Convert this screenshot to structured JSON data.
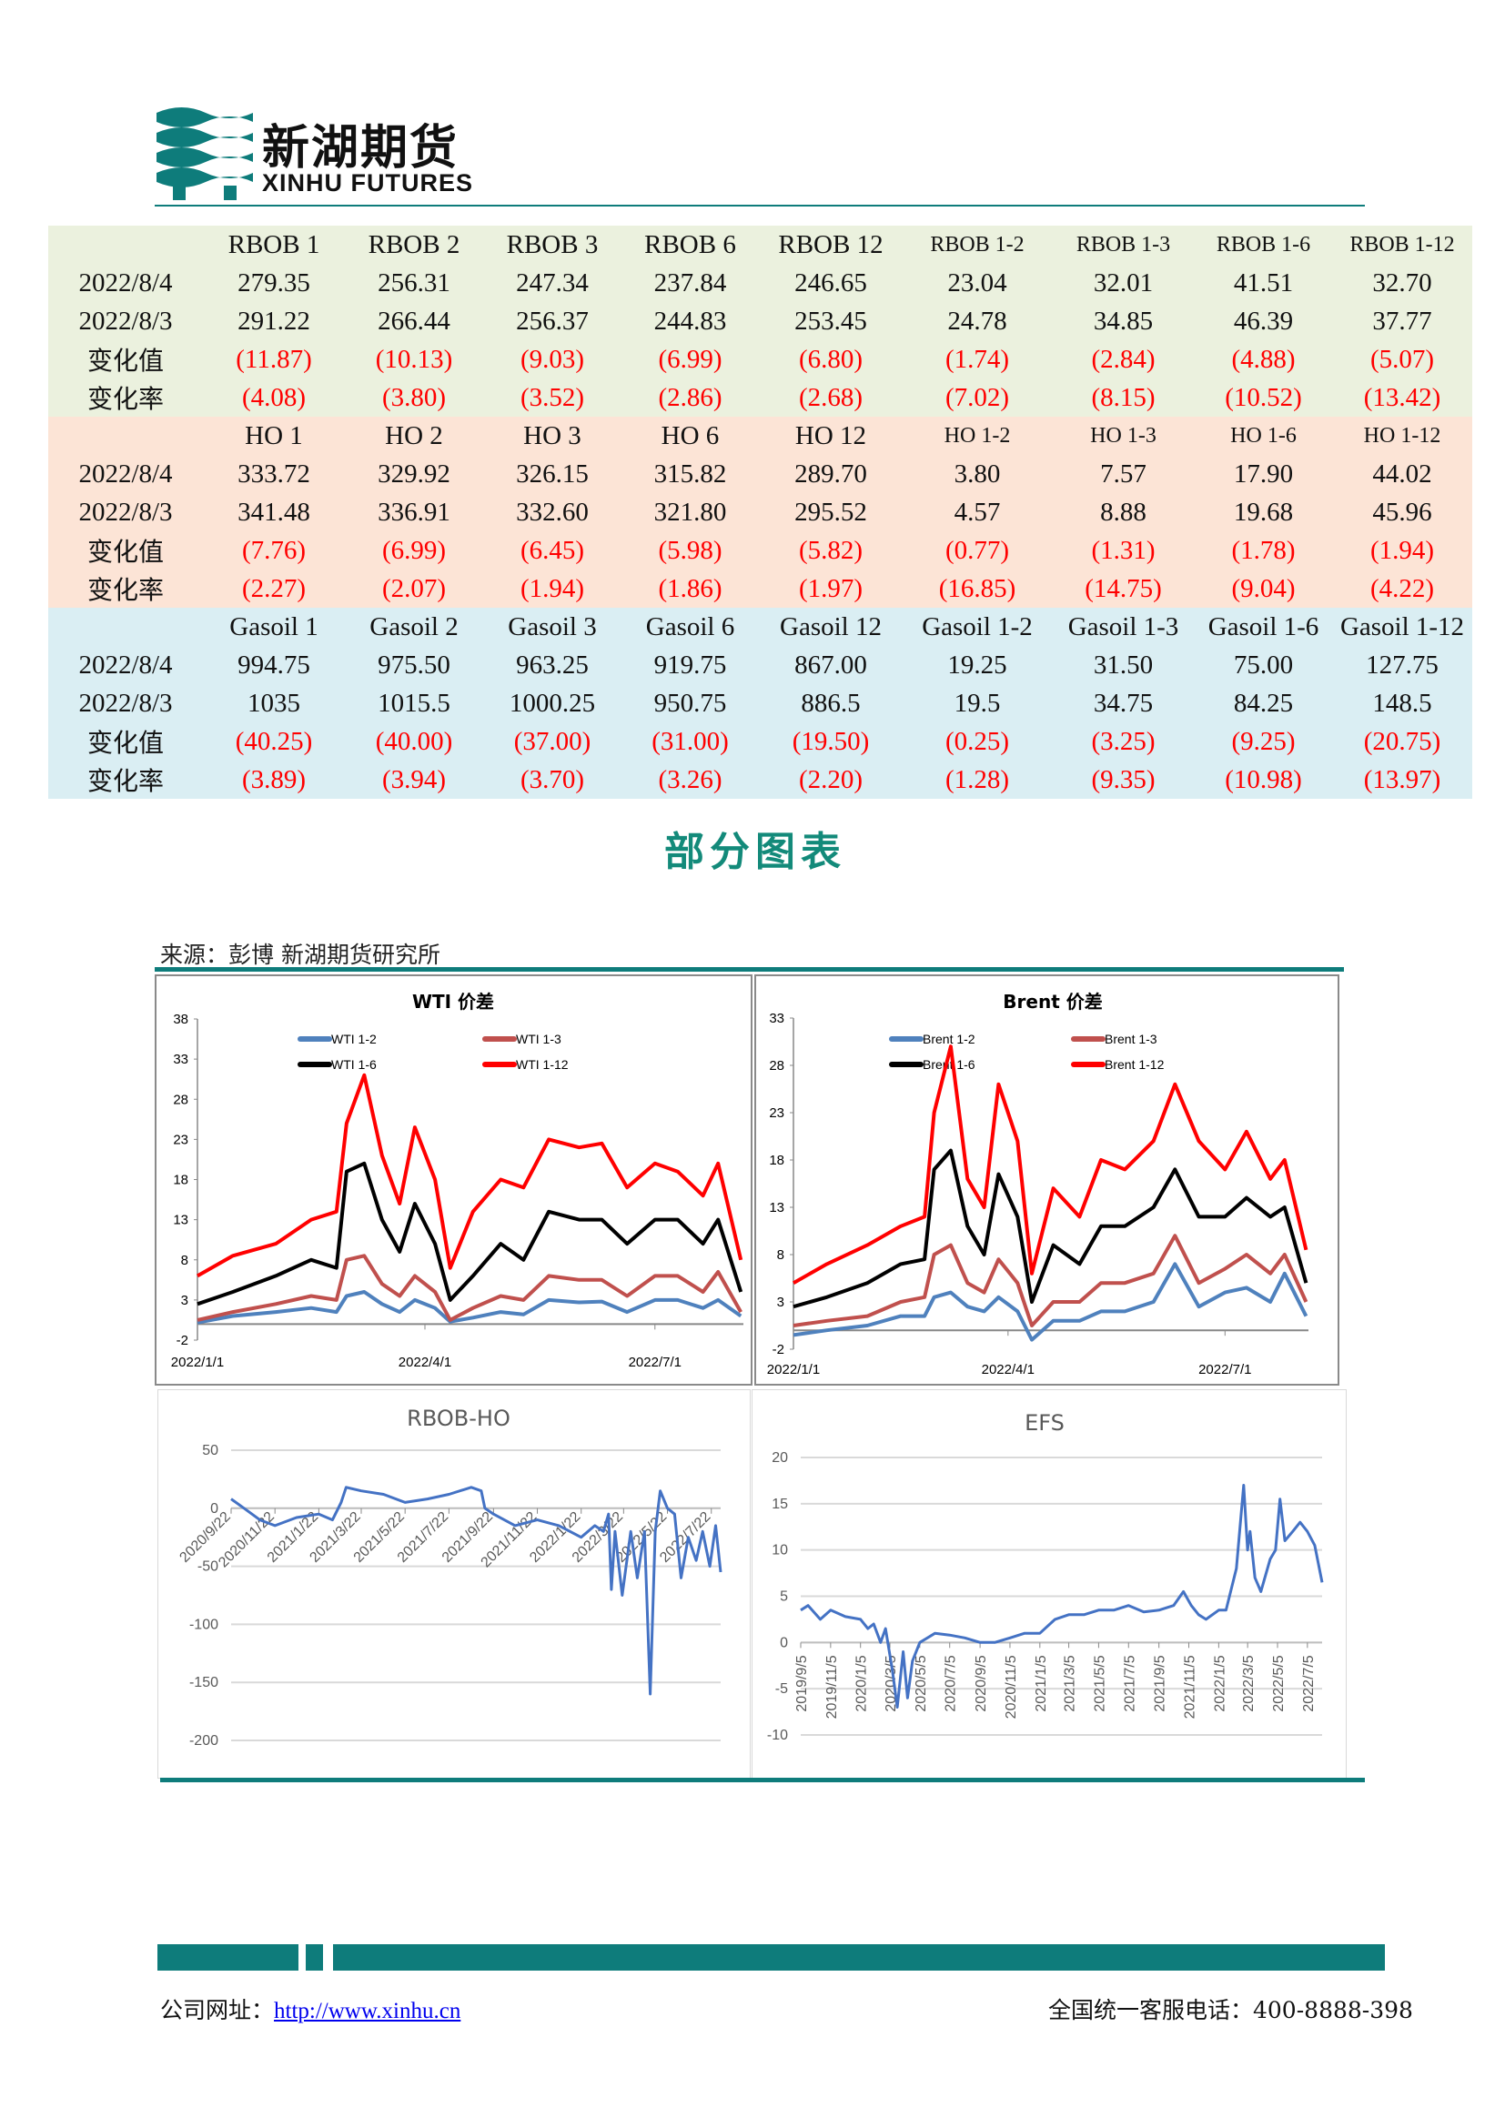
{
  "header": {
    "logo_cn": "新湖期货",
    "logo_en": "XINHU FUTURES",
    "brand_color": "#0e7c7b"
  },
  "table": {
    "sections": [
      {
        "headers": [
          "RBOB 1",
          "RBOB 2",
          "RBOB 3",
          "RBOB 6",
          "RBOB 12",
          "RBOB 1-2",
          "RBOB 1-3",
          "RBOB 1-6",
          "RBOB 1-12"
        ],
        "rows": [
          {
            "label": "2022/8/4",
            "values": [
              "279.35",
              "256.31",
              "247.34",
              "237.84",
              "246.65",
              "23.04",
              "32.01",
              "41.51",
              "32.70"
            ]
          },
          {
            "label": "2022/8/3",
            "values": [
              "291.22",
              "266.44",
              "256.37",
              "244.83",
              "253.45",
              "24.78",
              "34.85",
              "46.39",
              "37.77"
            ]
          },
          {
            "label": "变化值",
            "values": [
              "(11.87)",
              "(10.13)",
              "(9.03)",
              "(6.99)",
              "(6.80)",
              "(1.74)",
              "(2.84)",
              "(4.88)",
              "(5.07)"
            ],
            "negative": true
          },
          {
            "label": "变化率",
            "values": [
              "(4.08)",
              "(3.80)",
              "(3.52)",
              "(2.86)",
              "(2.68)",
              "(7.02)",
              "(8.15)",
              "(10.52)",
              "(13.42)"
            ],
            "negative": true
          }
        ]
      },
      {
        "headers": [
          "HO 1",
          "HO 2",
          "HO 3",
          "HO 6",
          "HO 12",
          "HO 1-2",
          "HO 1-3",
          "HO 1-6",
          "HO 1-12"
        ],
        "rows": [
          {
            "label": "2022/8/4",
            "values": [
              "333.72",
              "329.92",
              "326.15",
              "315.82",
              "289.70",
              "3.80",
              "7.57",
              "17.90",
              "44.02"
            ]
          },
          {
            "label": "2022/8/3",
            "values": [
              "341.48",
              "336.91",
              "332.60",
              "321.80",
              "295.52",
              "4.57",
              "8.88",
              "19.68",
              "45.96"
            ]
          },
          {
            "label": "变化值",
            "values": [
              "(7.76)",
              "(6.99)",
              "(6.45)",
              "(5.98)",
              "(5.82)",
              "(0.77)",
              "(1.31)",
              "(1.78)",
              "(1.94)"
            ],
            "negative": true
          },
          {
            "label": "变化率",
            "values": [
              "(2.27)",
              "(2.07)",
              "(1.94)",
              "(1.86)",
              "(1.97)",
              "(16.85)",
              "(14.75)",
              "(9.04)",
              "(4.22)"
            ],
            "negative": true
          }
        ]
      },
      {
        "headers": [
          "Gasoil 1",
          "Gasoil 2",
          "Gasoil 3",
          "Gasoil 6",
          "Gasoil 12",
          "Gasoil 1-2",
          "Gasoil 1-3",
          "Gasoil 1-6",
          "Gasoil 1-12"
        ],
        "rows": [
          {
            "label": "2022/8/4",
            "values": [
              "994.75",
              "975.50",
              "963.25",
              "919.75",
              "867.00",
              "19.25",
              "31.50",
              "75.00",
              "127.75"
            ]
          },
          {
            "label": "2022/8/3",
            "values": [
              "1035",
              "1015.5",
              "1000.25",
              "950.75",
              "886.5",
              "19.5",
              "34.75",
              "84.25",
              "148.5"
            ]
          },
          {
            "label": "变化值",
            "values": [
              "(40.25)",
              "(40.00)",
              "(37.00)",
              "(31.00)",
              "(19.50)",
              "(0.25)",
              "(3.25)",
              "(9.25)",
              "(20.75)"
            ],
            "negative": true
          },
          {
            "label": "变化率",
            "values": [
              "(3.89)",
              "(3.94)",
              "(3.70)",
              "(3.26)",
              "(2.20)",
              "(1.28)",
              "(9.35)",
              "(10.98)",
              "(13.97)"
            ],
            "negative": true
          }
        ]
      }
    ],
    "section_colors": [
      "#ebf1de",
      "#fce4d6",
      "#daeef3"
    ],
    "negative_color": "#ff0000"
  },
  "section_title": "部分图表",
  "source": "来源：彭博 新湖期货研究所",
  "footer": {
    "website_label": "公司网址：",
    "website_link": "http://www.xinhu.cn",
    "hotline": "全国统一客服电话：400-8888-398"
  },
  "chart_data": [
    {
      "type": "line",
      "title": "WTI 价差",
      "ylim": [
        -2,
        38
      ],
      "yticks": [
        "-2",
        "3",
        "8",
        "13",
        "18",
        "23",
        "28",
        "33",
        "38"
      ],
      "xticks": [
        "2022/1/1",
        "2022/4/1",
        "2022/7/1"
      ],
      "xlim": [
        "2022/1/1",
        "2022/8/5"
      ],
      "grid": false,
      "legend": "top",
      "x": [
        "2022/1/1",
        "2022/1/15",
        "2022/2/1",
        "2022/2/15",
        "2022/2/25",
        "2022/3/1",
        "2022/3/8",
        "2022/3/15",
        "2022/3/22",
        "2022/3/28",
        "2022/4/5",
        "2022/4/11",
        "2022/4/20",
        "2022/5/1",
        "2022/5/10",
        "2022/5/20",
        "2022/6/1",
        "2022/6/10",
        "2022/6/20",
        "2022/7/1",
        "2022/7/10",
        "2022/7/20",
        "2022/7/26",
        "2022/8/4"
      ],
      "series": [
        {
          "name": "WTI 1-2",
          "color": "#4f81bd",
          "values": [
            0.2,
            1,
            1.5,
            2,
            1.5,
            3.5,
            4,
            2.5,
            1.5,
            3,
            2,
            0.3,
            0.8,
            1.5,
            1.2,
            3,
            2.7,
            2.8,
            1.5,
            3,
            3,
            2,
            3,
            1
          ]
        },
        {
          "name": "WTI 1-3",
          "color": "#c0504d",
          "values": [
            0.5,
            1.5,
            2.5,
            3.5,
            3,
            8,
            8.5,
            5,
            3.5,
            6,
            4,
            0.5,
            2,
            3.5,
            3,
            6,
            5.5,
            5.5,
            3.5,
            6,
            6,
            4,
            6.5,
            1.5
          ]
        },
        {
          "name": "WTI 1-6",
          "color": "#000000",
          "values": [
            2.5,
            4,
            6,
            8,
            7,
            19,
            20,
            13,
            9,
            15,
            10,
            3,
            6,
            10,
            8,
            14,
            13,
            13,
            10,
            13,
            13,
            10,
            13,
            4
          ]
        },
        {
          "name": "WTI 1-12",
          "color": "#ff0000",
          "values": [
            6,
            8.5,
            10,
            13,
            14,
            25,
            31,
            21,
            15,
            24.5,
            18,
            7,
            14,
            18,
            17,
            23,
            22,
            22.5,
            17,
            20,
            19,
            16,
            20,
            8
          ]
        }
      ]
    },
    {
      "type": "line",
      "title": "Brent 价差",
      "ylim": [
        -2,
        33
      ],
      "yticks": [
        "-2",
        "3",
        "8",
        "13",
        "18",
        "23",
        "28",
        "33"
      ],
      "xticks": [
        "2022/1/1",
        "2022/4/1",
        "2022/7/1"
      ],
      "xlim": [
        "2022/1/1",
        "2022/8/5"
      ],
      "grid": false,
      "legend": "top",
      "x": [
        "2022/1/1",
        "2022/1/15",
        "2022/2/1",
        "2022/2/15",
        "2022/2/25",
        "2022/3/1",
        "2022/3/8",
        "2022/3/15",
        "2022/3/22",
        "2022/3/28",
        "2022/4/5",
        "2022/4/11",
        "2022/4/20",
        "2022/5/1",
        "2022/5/10",
        "2022/5/20",
        "2022/6/1",
        "2022/6/10",
        "2022/6/20",
        "2022/7/1",
        "2022/7/10",
        "2022/7/20",
        "2022/7/26",
        "2022/8/4"
      ],
      "series": [
        {
          "name": "Brent 1-2",
          "color": "#4f81bd",
          "values": [
            -0.5,
            0,
            0.5,
            1.5,
            1.5,
            3.5,
            4,
            2.5,
            2,
            3.5,
            2,
            -1,
            1,
            1,
            2,
            2,
            3,
            7,
            2.5,
            4,
            4.5,
            3,
            6,
            1.5
          ]
        },
        {
          "name": "Brent 1-3",
          "color": "#c0504d",
          "values": [
            0.5,
            1,
            1.5,
            3,
            3.5,
            8,
            9,
            5,
            4,
            7.5,
            5,
            0.5,
            3,
            3,
            5,
            5,
            6,
            10,
            5,
            6.5,
            8,
            6,
            8,
            3
          ]
        },
        {
          "name": "Brent 1-6",
          "color": "#000000",
          "values": [
            2.5,
            3.5,
            5,
            7,
            7.5,
            17,
            19,
            11,
            8,
            16.5,
            12,
            3,
            9,
            7,
            11,
            11,
            13,
            17,
            12,
            12,
            14,
            12,
            13,
            5
          ]
        },
        {
          "name": "Brent 1-12",
          "color": "#ff0000",
          "values": [
            5,
            7,
            9,
            11,
            12,
            23,
            30,
            16,
            13,
            26,
            20,
            6,
            15,
            12,
            18,
            17,
            20,
            26,
            20,
            17,
            21,
            16,
            18,
            8.5
          ]
        }
      ]
    },
    {
      "type": "line",
      "title": "RBOB-HO",
      "ylim": [
        -200,
        50
      ],
      "yticks": [
        "-200",
        "-150",
        "-100",
        "-50",
        "0",
        "50"
      ],
      "xticks": [
        "2020/9/22",
        "2020/11/22",
        "2021/1/22",
        "2021/3/22",
        "2021/5/22",
        "2021/7/22",
        "2021/9/22",
        "2021/11/22",
        "2022/1/22",
        "2022/3/22",
        "2022/5/22",
        "2022/7/22"
      ],
      "xlim": [
        "2020/9/22",
        "2022/8/4"
      ],
      "grid": true,
      "x": [
        "2020/9/22",
        "2020/10/10",
        "2020/11/1",
        "2020/11/22",
        "2020/12/22",
        "2021/1/22",
        "2021/2/10",
        "2021/2/22",
        "2021/3/1",
        "2021/3/22",
        "2021/4/22",
        "2021/5/22",
        "2021/6/22",
        "2021/7/22",
        "2021/8/22",
        "2021/9/5",
        "2021/9/10",
        "2021/9/22",
        "2021/10/22",
        "2021/11/22",
        "2021/12/22",
        "2022/1/22",
        "2022/2/10",
        "2022/2/22",
        "2022/3/1",
        "2022/3/5",
        "2022/3/10",
        "2022/3/20",
        "2022/4/1",
        "2022/4/10",
        "2022/4/20",
        "2022/4/28",
        "2022/5/5",
        "2022/5/12",
        "2022/5/22",
        "2022/6/1",
        "2022/6/10",
        "2022/6/20",
        "2022/7/1",
        "2022/7/10",
        "2022/7/20",
        "2022/7/28",
        "2022/8/4"
      ],
      "series": [
        {
          "color": "#4472c4",
          "values": [
            8,
            0,
            -10,
            -15,
            -8,
            -5,
            -10,
            5,
            18,
            15,
            12,
            5,
            8,
            12,
            18,
            15,
            0,
            -5,
            -15,
            -10,
            -15,
            -25,
            -15,
            -20,
            -5,
            -70,
            -20,
            -75,
            -20,
            -60,
            -20,
            -160,
            -20,
            15,
            0,
            -5,
            -60,
            -25,
            -45,
            -20,
            -50,
            -15,
            -55
          ]
        }
      ]
    },
    {
      "type": "line",
      "title": "EFS",
      "ylim": [
        -10,
        20
      ],
      "yticks": [
        "-10",
        "-5",
        "0",
        "5",
        "10",
        "15",
        "20"
      ],
      "xticks": [
        "2019/9/5",
        "2019/11/5",
        "2020/1/5",
        "2020/3/5",
        "2020/5/5",
        "2020/7/5",
        "2020/9/5",
        "2020/11/5",
        "2021/1/5",
        "2021/3/5",
        "2021/5/5",
        "2021/7/5",
        "2021/9/5",
        "2021/11/5",
        "2022/1/5",
        "2022/3/5",
        "2022/5/5",
        "2022/7/5"
      ],
      "xlim": [
        "2019/9/5",
        "2022/8/4"
      ],
      "grid": true,
      "x": [
        "2019/9/5",
        "2019/9/20",
        "2019/10/15",
        "2019/11/5",
        "2019/12/5",
        "2020/1/5",
        "2020/1/20",
        "2020/2/1",
        "2020/2/15",
        "2020/2/25",
        "2020/3/10",
        "2020/3/20",
        "2020/4/1",
        "2020/4/10",
        "2020/4/20",
        "2020/5/5",
        "2020/6/5",
        "2020/7/5",
        "2020/8/5",
        "2020/9/5",
        "2020/10/5",
        "2020/11/5",
        "2020/12/5",
        "2021/1/5",
        "2021/2/5",
        "2021/3/5",
        "2021/4/5",
        "2021/5/5",
        "2021/6/5",
        "2021/7/5",
        "2021/8/5",
        "2021/9/5",
        "2021/10/5",
        "2021/10/25",
        "2021/11/10",
        "2021/11/25",
        "2021/12/10",
        "2022/1/5",
        "2022/1/20",
        "2022/2/10",
        "2022/2/25",
        "2022/3/5",
        "2022/3/10",
        "2022/3/20",
        "2022/4/1",
        "2022/4/20",
        "2022/5/1",
        "2022/5/10",
        "2022/5/20",
        "2022/6/5",
        "2022/6/20",
        "2022/7/5",
        "2022/7/20",
        "2022/8/4"
      ],
      "series": [
        {
          "color": "#4472c4",
          "values": [
            3.5,
            4,
            2.5,
            3.5,
            2.8,
            2.5,
            1.5,
            2,
            0,
            1.5,
            -3,
            -7,
            -1,
            -6,
            -2,
            0,
            1,
            0.8,
            0.5,
            0,
            0,
            0.5,
            1,
            1,
            2.5,
            3,
            3,
            3.5,
            3.5,
            4,
            3.3,
            3.5,
            4,
            5.5,
            4,
            3,
            2.5,
            3.5,
            3.5,
            8,
            17,
            10,
            12,
            7,
            5.5,
            9,
            10,
            15.5,
            11,
            12,
            13,
            12,
            10.5,
            6.5
          ]
        }
      ]
    }
  ]
}
